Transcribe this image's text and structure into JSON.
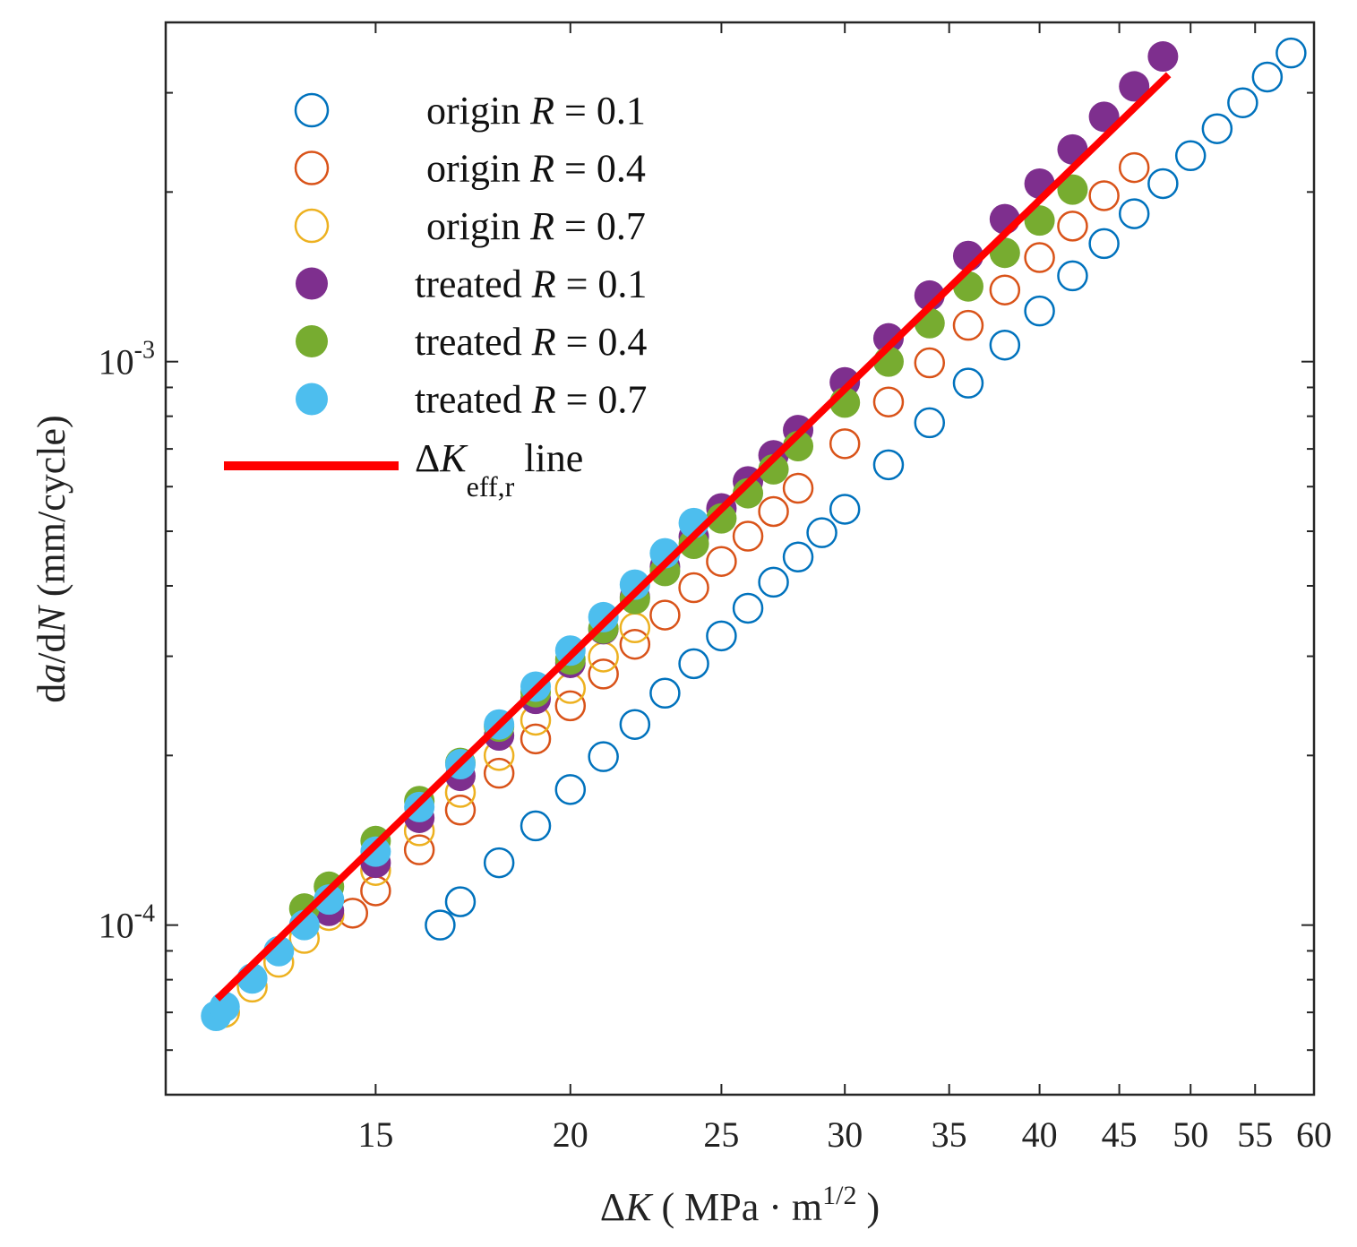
{
  "chart_data": {
    "type": "scatter",
    "title": "",
    "xlabel": {
      "delta": "Δ",
      "var": "K",
      "open": " ( MPa · m",
      "sup": "1/2",
      "close": " )"
    },
    "ylabel": {
      "d1": "d",
      "a": "a",
      "slash": "/d",
      "N": "N",
      "unit": " (mm/cycle)"
    },
    "xscale": "log",
    "yscale": "log",
    "xlim": [
      11,
      60
    ],
    "ylim": [
      5e-05,
      0.004
    ],
    "xticks": [
      15,
      20,
      25,
      30,
      35,
      40,
      45,
      50,
      55,
      60
    ],
    "xtick_labels": [
      "15",
      "20",
      "25",
      "30",
      "35",
      "40",
      "45",
      "50",
      "55",
      "60"
    ],
    "yticks": [
      0.0001,
      0.001
    ],
    "ytick_labels": [
      {
        "base": "10",
        "exp": "-4"
      },
      {
        "base": "10",
        "exp": "-3"
      }
    ],
    "grid": false,
    "legend_placement": "top-left",
    "series": [
      {
        "name": "origin R = 0.1",
        "prefix": "origin ",
        "R": "R",
        "eq": " = 0.1",
        "marker": "open-circle",
        "color": "#0072BD",
        "points": [
          [
            16.5,
            0.0001
          ],
          [
            17,
            0.00011
          ],
          [
            18,
            0.000129
          ],
          [
            19,
            0.00015
          ],
          [
            20,
            0.000174
          ],
          [
            21,
            0.000199
          ],
          [
            22,
            0.000227
          ],
          [
            23,
            0.000258
          ],
          [
            24,
            0.000291
          ],
          [
            25,
            0.000326
          ],
          [
            26,
            0.000365
          ],
          [
            27,
            0.000406
          ],
          [
            28,
            0.00045
          ],
          [
            29,
            0.000497
          ],
          [
            30,
            0.000547
          ],
          [
            32,
            0.000656
          ],
          [
            34,
            0.000779
          ],
          [
            36,
            0.000916
          ],
          [
            38,
            0.00107
          ],
          [
            40,
            0.00123
          ],
          [
            42,
            0.00142
          ],
          [
            44,
            0.00162
          ],
          [
            46,
            0.00183
          ],
          [
            48,
            0.00207
          ],
          [
            50,
            0.00232
          ],
          [
            52,
            0.00259
          ],
          [
            54,
            0.00288
          ],
          [
            56,
            0.0032
          ],
          [
            58,
            0.00353
          ]
        ]
      },
      {
        "name": "origin R = 0.4",
        "prefix": "origin ",
        "R": "R",
        "eq": " = 0.4",
        "marker": "open-circle",
        "color": "#D95319",
        "points": [
          [
            14.5,
            0.000105
          ],
          [
            15,
            0.000115
          ],
          [
            16,
            0.000136
          ],
          [
            17,
            0.00016
          ],
          [
            18,
            0.000186
          ],
          [
            19,
            0.000214
          ],
          [
            20,
            0.000245
          ],
          [
            21,
            0.000279
          ],
          [
            22,
            0.000315
          ],
          [
            23,
            0.000355
          ],
          [
            24,
            0.000397
          ],
          [
            25,
            0.000442
          ],
          [
            26,
            0.00049
          ],
          [
            27,
            0.000542
          ],
          [
            28,
            0.000596
          ],
          [
            30,
            0.000715
          ],
          [
            32,
            0.000848
          ],
          [
            34,
            0.000995
          ],
          [
            36,
            0.00116
          ],
          [
            38,
            0.00134
          ],
          [
            40,
            0.00153
          ],
          [
            42,
            0.00174
          ],
          [
            44,
            0.00197
          ],
          [
            46,
            0.00221
          ]
        ]
      },
      {
        "name": "origin R = 0.7",
        "prefix": "origin ",
        "R": "R",
        "eq": " = 0.7",
        "marker": "open-circle",
        "color": "#EDB120",
        "points": [
          [
            12,
            7e-05
          ],
          [
            12.5,
            7.76e-05
          ],
          [
            13,
            8.59e-05
          ],
          [
            13.5,
            9.47e-05
          ],
          [
            14,
            0.000104
          ],
          [
            15,
            0.000125
          ],
          [
            16,
            0.000147
          ],
          [
            17,
            0.000172
          ],
          [
            18,
            0.0002
          ],
          [
            19,
            0.000231
          ],
          [
            20,
            0.000263
          ],
          [
            21,
            0.000299
          ],
          [
            22,
            0.000337
          ]
        ]
      },
      {
        "name": "treated R = 0.1",
        "prefix": "treated ",
        "R": "R",
        "eq": " = 0.1",
        "marker": "filled-circle",
        "color": "#7E2F8E",
        "points": [
          [
            14,
            0.000106
          ],
          [
            15,
            0.000129
          ],
          [
            16,
            0.000155
          ],
          [
            17,
            0.000184
          ],
          [
            18,
            0.000217
          ],
          [
            19,
            0.000252
          ],
          [
            20,
            0.000292
          ],
          [
            21,
            0.000335
          ],
          [
            22,
            0.000382
          ],
          [
            23,
            0.000433
          ],
          [
            24,
            0.000489
          ],
          [
            25,
            0.000549
          ],
          [
            26,
            0.000613
          ],
          [
            27,
            0.000682
          ],
          [
            28,
            0.000756
          ],
          [
            30,
            0.000919
          ],
          [
            32,
            0.0011
          ],
          [
            34,
            0.00131
          ],
          [
            36,
            0.00154
          ],
          [
            38,
            0.00179
          ],
          [
            40,
            0.00207
          ],
          [
            42,
            0.00238
          ],
          [
            44,
            0.00272
          ],
          [
            46,
            0.00308
          ],
          [
            48,
            0.00348
          ]
        ]
      },
      {
        "name": "treated R = 0.4",
        "prefix": "treated ",
        "R": "R",
        "eq": " = 0.4",
        "marker": "filled-circle",
        "color": "#77AC30",
        "points": [
          [
            13.5,
            0.000107
          ],
          [
            14,
            0.000117
          ],
          [
            15,
            0.000141
          ],
          [
            16,
            0.000166
          ],
          [
            17,
            0.000194
          ],
          [
            18,
            0.000225
          ],
          [
            19,
            0.000259
          ],
          [
            20,
            0.000296
          ],
          [
            21,
            0.000336
          ],
          [
            22,
            0.000379
          ],
          [
            23,
            0.000425
          ],
          [
            24,
            0.000475
          ],
          [
            25,
            0.000527
          ],
          [
            26,
            0.000584
          ],
          [
            27,
            0.000644
          ],
          [
            28,
            0.000708
          ],
          [
            30,
            0.000846
          ],
          [
            32,
            0.001
          ],
          [
            34,
            0.00117
          ],
          [
            36,
            0.00136
          ],
          [
            38,
            0.00156
          ],
          [
            40,
            0.00178
          ],
          [
            42,
            0.00202
          ]
        ]
      },
      {
        "name": "treated R = 0.7",
        "prefix": "treated ",
        "R": "R",
        "eq": " = 0.7",
        "marker": "filled-circle",
        "color": "#4DBEEE",
        "points": [
          [
            11.85,
            6.9e-05
          ],
          [
            12,
            7.16e-05
          ],
          [
            12.5,
            8.04e-05
          ],
          [
            13,
            8.99e-05
          ],
          [
            13.5,
            0.0001
          ],
          [
            14,
            0.000111
          ],
          [
            15,
            0.000135
          ],
          [
            16,
            0.000162
          ],
          [
            17,
            0.000193
          ],
          [
            18,
            0.000227
          ],
          [
            19,
            0.000265
          ],
          [
            20,
            0.000307
          ],
          [
            21,
            0.000352
          ],
          [
            22,
            0.000402
          ],
          [
            23,
            0.000457
          ],
          [
            24,
            0.000517
          ]
        ]
      }
    ],
    "fit_line": {
      "name": "ΔK_eff,r line",
      "delta": "Δ",
      "var": "K",
      "sub": "eff,r",
      "rest": " line",
      "color": "#FF0000",
      "points": [
        [
          11.87,
          7.4e-05
        ],
        [
          48.4,
          0.00323
        ]
      ]
    }
  }
}
